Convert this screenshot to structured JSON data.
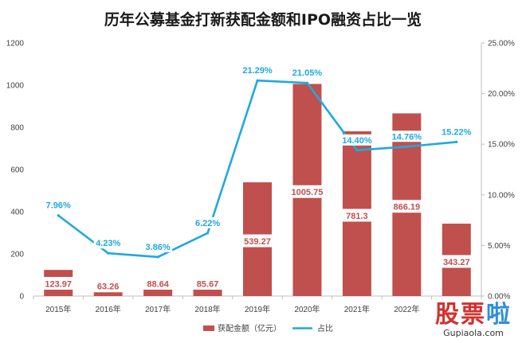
{
  "chart_data": {
    "type": "bar+line",
    "title": "历年公募基金打新获配金额和IPO融资占比一览",
    "categories": [
      "2015年",
      "2016年",
      "2017年",
      "2018年",
      "2019年",
      "2020年",
      "2021年",
      "2022年",
      ""
    ],
    "series": [
      {
        "name": "获配金额（亿元）",
        "type": "bar",
        "axis": "left",
        "color": "#c0504d",
        "values": [
          123.97,
          63.26,
          88.64,
          85.67,
          539.27,
          1005.75,
          781.3,
          866.19,
          343.27
        ],
        "labels": [
          "123.97",
          "63.26",
          "88.64",
          "85.67",
          "539.27",
          "1005.75",
          "781.3",
          "866.19",
          "343.27"
        ]
      },
      {
        "name": "占比",
        "type": "line",
        "axis": "right",
        "color": "#1fa9e1",
        "values": [
          7.96,
          4.23,
          3.86,
          6.22,
          21.29,
          21.05,
          14.4,
          14.76,
          15.22
        ],
        "labels": [
          "7.96%",
          "4.23%",
          "3.86%",
          "6.22%",
          "21.29%",
          "21.05%",
          "14.40%",
          "14.76%",
          "15.22%"
        ]
      }
    ],
    "left_axis": {
      "min": 0,
      "max": 1200,
      "ticks": [
        "0",
        "200",
        "400",
        "600",
        "800",
        "1000",
        "1200"
      ]
    },
    "right_axis": {
      "min": 0,
      "max": 25,
      "ticks": [
        "0.00%",
        "5.00%",
        "10.00%",
        "15.00%",
        "20.00%",
        "25.00%"
      ]
    },
    "grid": false,
    "legend_position": "bottom"
  },
  "watermark": {
    "text_a": "股票",
    "text_b": "啦",
    "url": "Gupiaola.com"
  }
}
